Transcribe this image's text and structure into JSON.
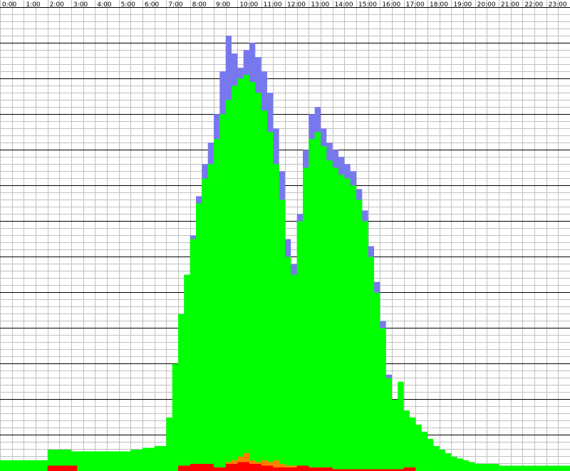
{
  "chart_data": {
    "type": "area",
    "title": "",
    "xlabel": "",
    "ylabel": "",
    "x_tick_labels": [
      "0:00",
      "1:00",
      "2:00",
      "3:00",
      "4:00",
      "5:00",
      "6:00",
      "7:00",
      "8:00",
      "9:00",
      "10:00",
      "11:00",
      "12:00",
      "13:00",
      "14:00",
      "15:00",
      "16:00",
      "17:00",
      "18:00",
      "19:00",
      "20:00",
      "21:00",
      "22:00",
      "23:00"
    ],
    "xlim": [
      0,
      24
    ],
    "ylim": [
      0,
      130
    ],
    "grid": true,
    "colors": {
      "background": "#ffffff",
      "grid_minor": "#c0c0c0",
      "grid_major": "#000000",
      "green": "#00ff00",
      "blue": "#7878ee",
      "red": "#ff0000",
      "orange": "#ff8000"
    },
    "series": [
      {
        "color_key": "green",
        "x": [
          0,
          0.5,
          1,
          1.5,
          2,
          2.5,
          3,
          3.5,
          4,
          4.5,
          5,
          5.5,
          6,
          6.5,
          7,
          7.25,
          7.5,
          7.75,
          8,
          8.25,
          8.5,
          8.75,
          9,
          9.25,
          9.5,
          9.75,
          10,
          10.25,
          10.5,
          10.75,
          11,
          11.25,
          11.5,
          11.75,
          12,
          12.25,
          12.5,
          12.75,
          13,
          13.25,
          13.5,
          13.75,
          14,
          14.25,
          14.5,
          14.75,
          15,
          15.25,
          15.5,
          15.75,
          16,
          16.25,
          16.5,
          16.75,
          17,
          17.25,
          17.5,
          17.75,
          18,
          18.25,
          18.5,
          18.75,
          19,
          19.25,
          19.5,
          19.75,
          20,
          20.5,
          21,
          21.5,
          22,
          22.5,
          23,
          23.5,
          24
        ],
        "values": [
          3,
          3,
          3,
          3,
          6,
          6,
          5.5,
          5.5,
          5.5,
          5.5,
          5.5,
          6,
          6.5,
          7,
          15,
          30,
          44,
          55,
          65,
          75,
          82,
          86,
          93,
          100,
          104,
          108,
          110,
          111,
          109,
          106,
          101,
          95,
          86,
          76,
          60,
          55,
          70,
          85,
          93,
          95,
          91,
          87,
          85,
          83,
          82,
          80,
          76,
          70,
          60,
          50,
          40,
          26,
          20,
          25,
          17,
          15,
          13,
          11,
          9,
          7,
          6,
          5,
          4,
          3.5,
          3,
          2.5,
          2,
          2,
          1.5,
          1.5,
          1.5,
          1.5,
          1.5,
          1.5,
          1.5
        ]
      },
      {
        "color_key": "blue",
        "x": [
          7.5,
          7.75,
          8,
          8.25,
          8.5,
          8.75,
          9,
          9.25,
          9.5,
          9.75,
          10,
          10.25,
          10.5,
          10.75,
          11,
          11.25,
          11.5,
          11.75,
          12,
          12.25,
          12.5,
          12.75,
          13,
          13.25,
          13.5,
          13.75,
          14,
          14.25,
          14.5,
          14.75,
          15,
          15.25,
          15.5,
          15.75,
          16,
          16.25,
          16.5
        ],
        "values": [
          44,
          55,
          66,
          77,
          86,
          92,
          100,
          112,
          122,
          117,
          113,
          118,
          120,
          116,
          112,
          106,
          96,
          84,
          65,
          58,
          72,
          90,
          100,
          102,
          96,
          92,
          90,
          88,
          86,
          84,
          79,
          73,
          63,
          53,
          42,
          27,
          20
        ]
      },
      {
        "color_key": "red",
        "x": [
          2,
          2.75,
          3.25,
          7.5,
          8,
          8.5,
          9,
          9.5,
          10,
          10.5,
          11,
          11.5,
          12,
          12.5,
          13,
          13.5,
          14,
          14.5,
          15,
          15.5,
          16,
          16.5,
          17,
          17.5
        ],
        "values": [
          1.5,
          1.5,
          0,
          1.5,
          2,
          2,
          1,
          2,
          2.5,
          2,
          1.5,
          1,
          1,
          1.5,
          1,
          1,
          0.5,
          0.5,
          0.5,
          0.5,
          0.5,
          0.5,
          1,
          0.5
        ]
      },
      {
        "color_key": "orange",
        "x": [
          9,
          9.5,
          9.75,
          10,
          10.25,
          10.5,
          10.75,
          11,
          11.25,
          11.5,
          11.75,
          12,
          12.25,
          12.5,
          13,
          13.5,
          14
        ],
        "values": [
          1,
          2.5,
          3,
          4,
          5,
          3,
          2.5,
          3,
          2.5,
          3,
          2,
          1.5,
          1.5,
          1,
          1,
          1,
          0.5
        ]
      }
    ]
  }
}
